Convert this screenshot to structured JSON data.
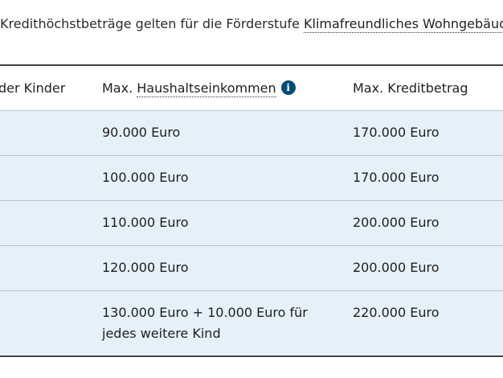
{
  "intro": {
    "text": "Kredithöchstbeträge gelten für die Förderstufe ",
    "link": "Klimafreundliches Wohngebäud"
  },
  "table": {
    "headers": {
      "children": "der Kinder",
      "income_prefix": "Max. ",
      "income_link": "Haushaltseinkommen",
      "credit": "Max. Kreditbetrag"
    },
    "rows": [
      {
        "income": "90.000 Euro",
        "credit": "170.000 Euro"
      },
      {
        "income": "100.000 Euro",
        "credit": "170.000 Euro"
      },
      {
        "income": "110.000 Euro",
        "credit": "200.000 Euro"
      },
      {
        "income": "120.000 Euro",
        "credit": "200.000 Euro"
      },
      {
        "income": "130.000 Euro + 10.000 Euro für jedes weitere Kind",
        "credit": "220.000 Euro"
      }
    ]
  },
  "icons": {
    "info": "info-icon"
  },
  "colors": {
    "row_bg": "#e6f0f8",
    "info_icon": "#004b76"
  }
}
